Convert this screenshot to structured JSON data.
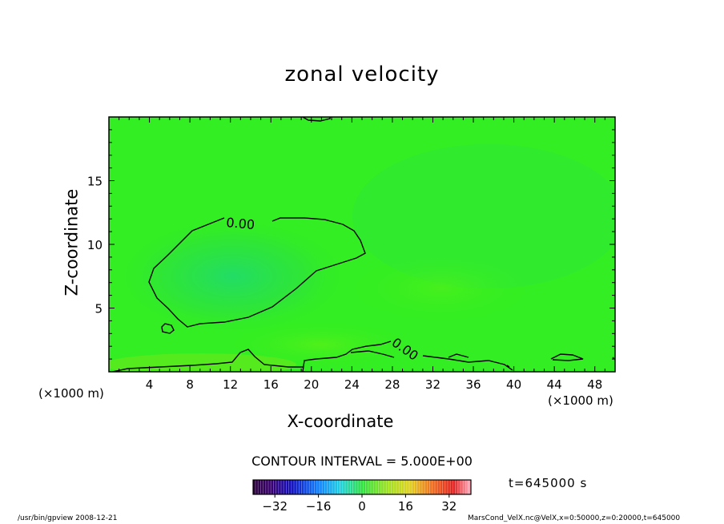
{
  "chart_data": {
    "type": "heatmap",
    "title": "zonal velocity",
    "xlabel": "X-coordinate",
    "ylabel": "Z-coordinate",
    "x_unit_label": "(×1000 m)",
    "x_ticks": [
      4,
      8,
      12,
      16,
      20,
      24,
      28,
      32,
      36,
      40,
      44,
      48
    ],
    "y_ticks": [
      5,
      10,
      15
    ],
    "xlim": [
      0,
      50
    ],
    "ylim": [
      0,
      20
    ],
    "contour_labels": [
      "0.00",
      "0.00"
    ],
    "contour_interval_text": "CONTOUR INTERVAL = 5.000E+00",
    "colorbar": {
      "range": [
        -40,
        40
      ],
      "ticks": [
        -32,
        -16,
        0,
        16,
        32
      ],
      "colormap": "rainbow (purple-blue-cyan-green-yellow-red-pink)"
    },
    "field_description_values": {
      "background": "≈ 0 (green)",
      "central_blob_min": "≈ -3 (slightly cyan-green) near x≈13, z≈7",
      "right_upper_region": "≈ +1 (green)"
    },
    "time_label": "t=645000 s"
  },
  "footer": {
    "left": "/usr/bin/gpview   2008-12-21",
    "right": "MarsCond_VelX.nc@VelX,x=0:50000,z=0:20000,t=645000"
  },
  "colors": {
    "field_base": "#33ee22",
    "field_light": "#44f02b",
    "field_cool": "#22e25a",
    "field_warm": "#55ee10",
    "contour": "#000000"
  }
}
